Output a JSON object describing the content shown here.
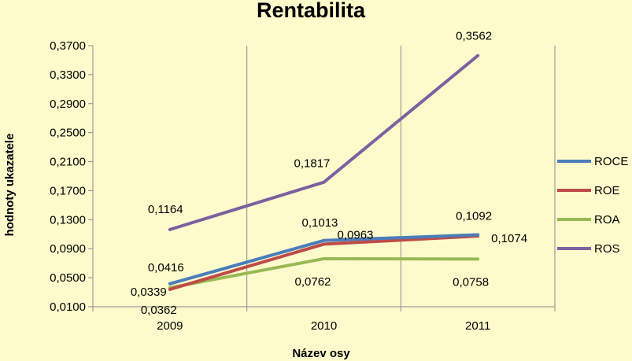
{
  "chart_data": {
    "type": "line",
    "title": "Rentabilita",
    "xlabel": "Název osy",
    "ylabel": "hodnoty ukazatele",
    "categories": [
      "2009",
      "2010",
      "2011"
    ],
    "ylim": [
      0.01,
      0.37
    ],
    "yticks": [
      "0,0100",
      "0,0500",
      "0,0900",
      "0,1300",
      "0,1700",
      "0,2100",
      "0,2500",
      "0,2900",
      "0,3300",
      "0,3700"
    ],
    "grid": {
      "vertical": true,
      "horizontal": false
    },
    "legend_position": "right",
    "series": [
      {
        "name": "ROCE",
        "color": "#4a7ebb",
        "values": [
          0.0416,
          0.1013,
          0.1092
        ],
        "labels": [
          "0,0416",
          "0,1013",
          "0,1092"
        ]
      },
      {
        "name": "ROE",
        "color": "#be4b48",
        "values": [
          0.0339,
          0.0963,
          0.1074
        ],
        "labels": [
          "0,0339",
          "0,0963",
          "0,1074"
        ]
      },
      {
        "name": "ROA",
        "color": "#98b954",
        "values": [
          0.0362,
          0.0762,
          0.0758
        ],
        "labels": [
          "0,0362",
          "0,0762",
          "0,0758"
        ]
      },
      {
        "name": "ROS",
        "color": "#7d60a0",
        "values": [
          0.1164,
          0.1817,
          0.3562
        ],
        "labels": [
          "0,1164",
          "0,1817",
          "0,3562"
        ]
      }
    ]
  }
}
